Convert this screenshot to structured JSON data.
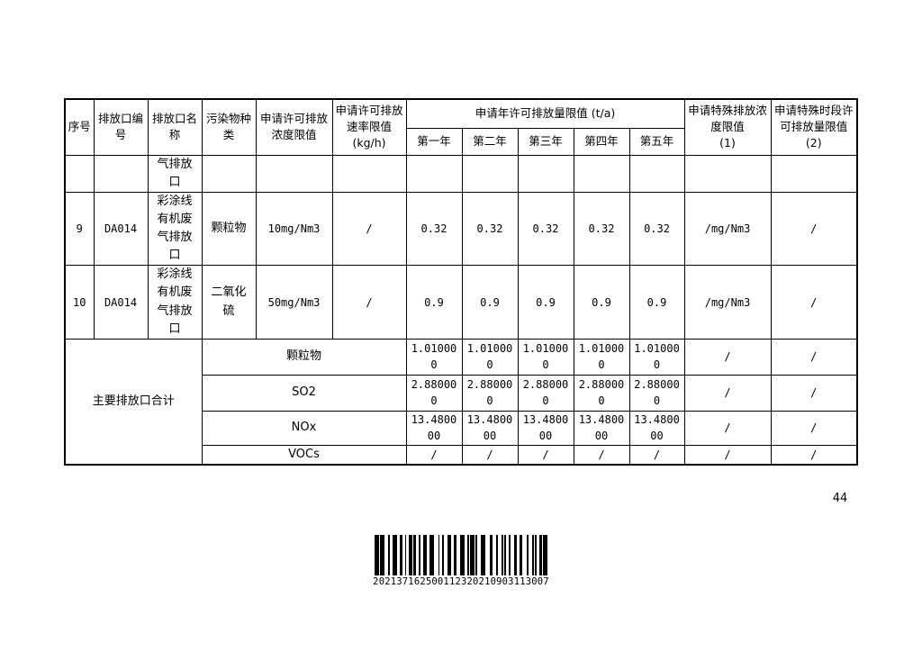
{
  "page": {
    "number": "44",
    "barcode": "202137162500112320210903113007"
  },
  "table": {
    "headers": {
      "seq": "序号",
      "outlet_no": "排放口编号",
      "outlet_name": "排放口名称",
      "pollutant_type": "污染物种类",
      "conc_limit": "申请许可排放浓度限值",
      "rate_limit": "申请许可排放速率限值\n(kg/h)",
      "annual_limit": "申请年许可排放量限值 (t/a)",
      "years": [
        "第一年",
        "第二年",
        "第三年",
        "第四年",
        "第五年"
      ],
      "special_conc": "申请特殊排放浓度限值\n(1)",
      "special_period": "申请特殊时段许可排放量限值\n(2)"
    },
    "rows": [
      {
        "seq": "",
        "outlet_no": "",
        "outlet_name": "气排放口",
        "pollutant": "",
        "conc": "",
        "rate": "",
        "years": [
          "",
          "",
          "",
          "",
          ""
        ],
        "special_conc": "",
        "special_period": ""
      },
      {
        "seq": "9",
        "outlet_no": "DA014",
        "outlet_name": "彩涂线有机废气排放口",
        "pollutant": "颗粒物",
        "conc": "10mg/Nm3",
        "rate": "/",
        "years": [
          "0.32",
          "0.32",
          "0.32",
          "0.32",
          "0.32"
        ],
        "special_conc": "/mg/Nm3",
        "special_period": "/"
      },
      {
        "seq": "10",
        "outlet_no": "DA014",
        "outlet_name": "彩涂线有机废气排放口",
        "pollutant": "二氧化硫",
        "conc": "50mg/Nm3",
        "rate": "/",
        "years": [
          "0.9",
          "0.9",
          "0.9",
          "0.9",
          "0.9"
        ],
        "special_conc": "/mg/Nm3",
        "special_period": "/"
      }
    ],
    "summary": {
      "label": "主要排放口合计",
      "rows": [
        {
          "pollutant": "颗粒物",
          "years": [
            "1.010000",
            "1.010000",
            "1.010000",
            "1.010000",
            "1.010000"
          ],
          "special_conc": "/",
          "special_period": "/"
        },
        {
          "pollutant": "SO2",
          "years": [
            "2.880000",
            "2.880000",
            "2.880000",
            "2.880000",
            "2.880000"
          ],
          "special_conc": "/",
          "special_period": "/"
        },
        {
          "pollutant": "NOx",
          "years": [
            "13.480000",
            "13.480000",
            "13.480000",
            "13.480000",
            "13.480000"
          ],
          "special_conc": "/",
          "special_period": "/"
        },
        {
          "pollutant": "VOCs",
          "years": [
            "/",
            "/",
            "/",
            "/",
            "/"
          ],
          "special_conc": "/",
          "special_period": "/"
        }
      ]
    }
  }
}
